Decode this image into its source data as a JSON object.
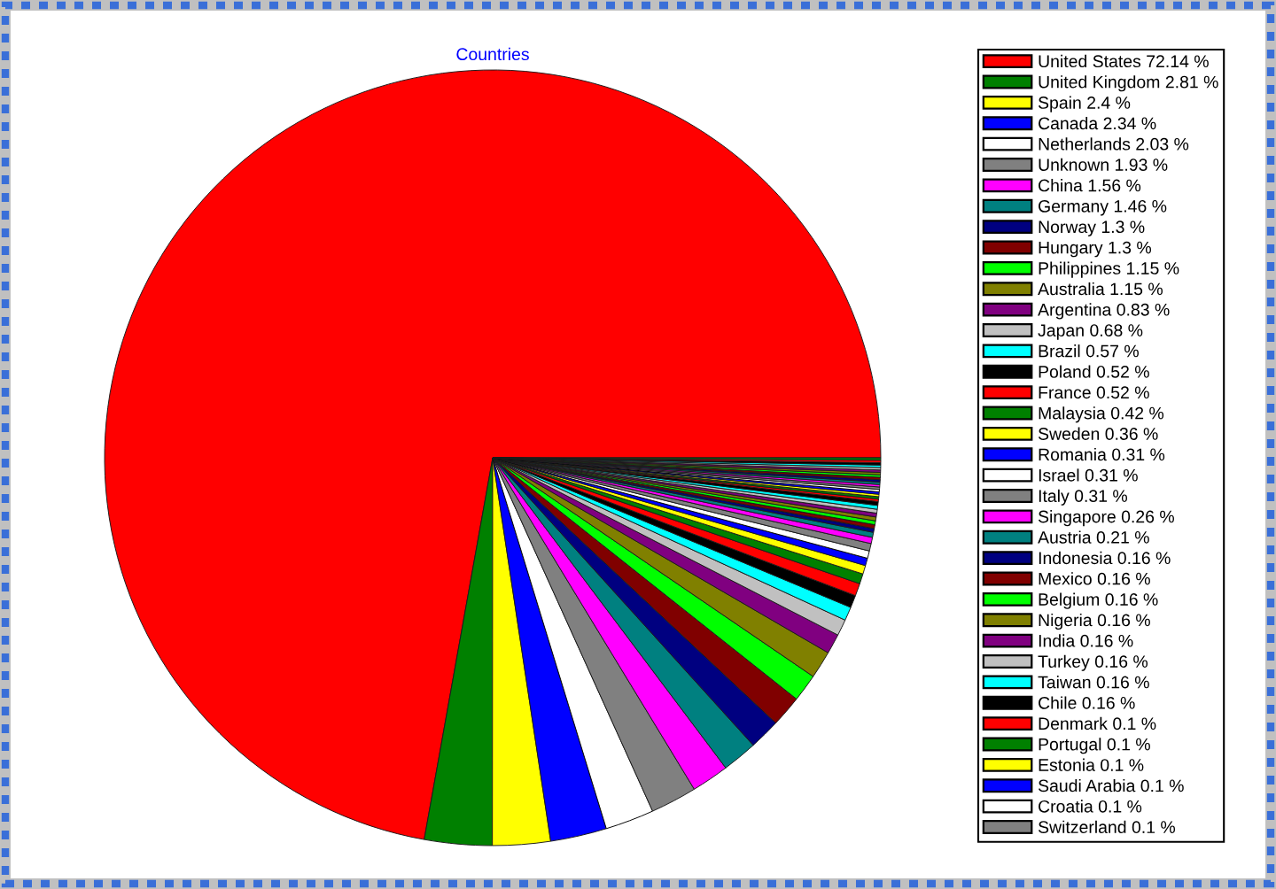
{
  "chart_data": {
    "type": "pie",
    "title": "Countries",
    "categories": [
      "United States",
      "United Kingdom",
      "Spain",
      "Canada",
      "Netherlands",
      "Unknown",
      "China",
      "Germany",
      "Norway",
      "Hungary",
      "Philippines",
      "Australia",
      "Argentina",
      "Japan",
      "Brazil",
      "Poland",
      "France",
      "Malaysia",
      "Sweden",
      "Romania",
      "Israel",
      "Italy",
      "Singapore",
      "Austria",
      "Indonesia",
      "Mexico",
      "Belgium",
      "Nigeria",
      "India",
      "Turkey",
      "Taiwan",
      "Chile",
      "Denmark",
      "Portugal",
      "Estonia",
      "Saudi Arabia",
      "Croatia",
      "Switzerland",
      null,
      null,
      null,
      null,
      null,
      null,
      null,
      null,
      null,
      null,
      null,
      null
    ],
    "values": [
      72.14,
      2.81,
      2.4,
      2.34,
      2.03,
      1.93,
      1.56,
      1.46,
      1.3,
      1.3,
      1.15,
      1.15,
      0.83,
      0.68,
      0.57,
      0.52,
      0.52,
      0.42,
      0.36,
      0.31,
      0.31,
      0.31,
      0.26,
      0.21,
      0.16,
      0.16,
      0.16,
      0.16,
      0.16,
      0.16,
      0.16,
      0.16,
      0.1,
      0.1,
      0.1,
      0.1,
      0.1,
      0.1,
      0.1,
      0.1,
      0.1,
      0.1,
      0.1,
      0.1,
      0.1,
      0.1,
      0.1,
      0.1,
      0.1,
      0.1
    ],
    "value_labels": [
      "72.14 %",
      "2.81 %",
      "2.4 %",
      "2.34 %",
      "2.03 %",
      "1.93 %",
      "1.56 %",
      "1.46 %",
      "1.3 %",
      "1.3 %",
      "1.15 %",
      "1.15 %",
      "0.83 %",
      "0.68 %",
      "0.57 %",
      "0.52 %",
      "0.52 %",
      "0.42 %",
      "0.36 %",
      "0.31 %",
      "0.31 %",
      "0.31 %",
      "0.26 %",
      "0.21 %",
      "0.16 %",
      "0.16 %",
      "0.16 %",
      "0.16 %",
      "0.16 %",
      "0.16 %",
      "0.16 %",
      "0.16 %",
      "0.1 %",
      "0.1 %",
      "0.1 %",
      "0.1 %",
      "0.1 %",
      "0.1 %",
      null,
      null,
      null,
      null,
      null,
      null,
      null,
      null,
      null,
      null,
      null,
      null
    ],
    "colors": [
      "#ff0000",
      "#008000",
      "#ffff00",
      "#0000ff",
      "#ffffff",
      "#808080",
      "#ff00ff",
      "#008080",
      "#000080",
      "#800000",
      "#00ff00",
      "#808000",
      "#800080",
      "#c0c0c0",
      "#00ffff",
      "#000000",
      "#ff0000",
      "#008000",
      "#ffff00",
      "#0000ff",
      "#ffffff",
      "#808080",
      "#ff00ff",
      "#008080",
      "#000080",
      "#800000",
      "#00ff00",
      "#808000",
      "#800080",
      "#c0c0c0",
      "#00ffff",
      "#000000",
      "#ff0000",
      "#008000",
      "#ffff00",
      "#0000ff",
      "#ffffff",
      "#808080",
      "#ff00ff",
      "#008080",
      "#000080",
      "#800000",
      "#00ff00",
      "#808000",
      "#800080",
      "#c0c0c0",
      "#00ffff",
      "#000000",
      "#ff0000",
      "#008000"
    ],
    "legend": "right"
  }
}
